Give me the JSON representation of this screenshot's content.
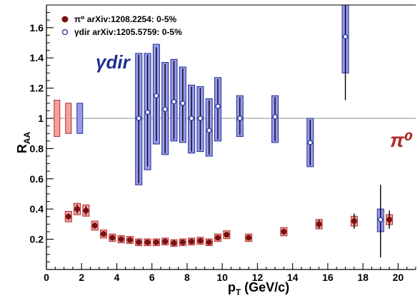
{
  "chart_data": {
    "type": "scatter",
    "xlabel": "p",
    "xlabel_sub": "T",
    "xlabel_unit": " (GeV/c)",
    "ylabel": "R",
    "ylabel_sub": "AA",
    "xlim": [
      0,
      21
    ],
    "ylim": [
      0,
      1.75
    ],
    "x_ticks": [
      0,
      2,
      4,
      6,
      8,
      10,
      12,
      14,
      16,
      18,
      20
    ],
    "x_tick_labels": [
      "0",
      "2",
      "4",
      "6",
      "8",
      "10",
      "12",
      "14",
      "16",
      "18",
      "20"
    ],
    "y_ticks": [
      0.2,
      0.4,
      0.6,
      0.8,
      1.0,
      1.2,
      1.4,
      1.6
    ],
    "y_tick_labels": [
      "0.2",
      "0.4",
      "0.6",
      "0.8",
      "1",
      "1.2",
      "1.4",
      "1.6"
    ],
    "reference_line": 1.0,
    "grid": false,
    "legend_position": "top-left",
    "annotations": {
      "gamma_label": "γdir",
      "pi_label": "π⁰"
    },
    "normalization_boxes": [
      {
        "y": 1.0,
        "low": 0.88,
        "high": 1.12,
        "color": "#f4a0a0"
      },
      {
        "y": 1.0,
        "low": 0.9,
        "high": 1.1,
        "color": "#f4a0a0"
      },
      {
        "y": 1.0,
        "low": 0.9,
        "high": 1.1,
        "color": "#9999ee"
      }
    ],
    "series": [
      {
        "name": "π⁰ arXiv:1208.2254: 0-5%",
        "marker": "filled-circle",
        "color": "#7a1010",
        "box_color": "#f4a0a0",
        "points": [
          {
            "x": 1.25,
            "y": 0.35,
            "lo": 0.33,
            "hi": 0.37
          },
          {
            "x": 1.75,
            "y": 0.4,
            "lo": 0.37,
            "hi": 0.43
          },
          {
            "x": 2.25,
            "y": 0.39,
            "lo": 0.36,
            "hi": 0.42
          },
          {
            "x": 2.75,
            "y": 0.29,
            "lo": 0.27,
            "hi": 0.31
          },
          {
            "x": 3.25,
            "y": 0.235,
            "lo": 0.225,
            "hi": 0.245
          },
          {
            "x": 3.75,
            "y": 0.21,
            "lo": 0.2,
            "hi": 0.22
          },
          {
            "x": 4.25,
            "y": 0.2,
            "lo": 0.19,
            "hi": 0.21
          },
          {
            "x": 4.75,
            "y": 0.195,
            "lo": 0.185,
            "hi": 0.205
          },
          {
            "x": 5.25,
            "y": 0.18,
            "lo": 0.17,
            "hi": 0.19
          },
          {
            "x": 5.75,
            "y": 0.18,
            "lo": 0.17,
            "hi": 0.19
          },
          {
            "x": 6.25,
            "y": 0.18,
            "lo": 0.17,
            "hi": 0.19
          },
          {
            "x": 6.75,
            "y": 0.185,
            "lo": 0.175,
            "hi": 0.195
          },
          {
            "x": 7.25,
            "y": 0.175,
            "lo": 0.165,
            "hi": 0.185
          },
          {
            "x": 7.75,
            "y": 0.18,
            "lo": 0.17,
            "hi": 0.19
          },
          {
            "x": 8.25,
            "y": 0.185,
            "lo": 0.175,
            "hi": 0.195
          },
          {
            "x": 8.75,
            "y": 0.19,
            "lo": 0.18,
            "hi": 0.2
          },
          {
            "x": 9.25,
            "y": 0.18,
            "lo": 0.17,
            "hi": 0.19
          },
          {
            "x": 9.75,
            "y": 0.21,
            "lo": 0.195,
            "hi": 0.225
          },
          {
            "x": 10.25,
            "y": 0.23,
            "lo": 0.215,
            "hi": 0.245
          },
          {
            "x": 11.5,
            "y": 0.21,
            "lo": 0.195,
            "hi": 0.225
          },
          {
            "x": 13.5,
            "y": 0.25,
            "lo": 0.23,
            "hi": 0.27
          },
          {
            "x": 15.5,
            "y": 0.3,
            "lo": 0.27,
            "hi": 0.33
          },
          {
            "x": 17.5,
            "y": 0.32,
            "lo": 0.27,
            "hi": 0.37
          },
          {
            "x": 19.5,
            "y": 0.33,
            "lo": 0.27,
            "hi": 0.39
          }
        ]
      },
      {
        "name": "γdir arXiv:1205.5759: 0-5%",
        "marker": "open-circle",
        "color": "#1f2f8f",
        "box_color": "#9999ee",
        "points": [
          {
            "x": 5.25,
            "y": 1.0,
            "lo": 0.57,
            "hi": 1.42,
            "box_lo": 0.56,
            "box_hi": 1.43
          },
          {
            "x": 5.75,
            "y": 1.04,
            "lo": 0.68,
            "hi": 1.42,
            "box_lo": 0.66,
            "box_hi": 1.43
          },
          {
            "x": 6.25,
            "y": 1.15,
            "lo": 0.85,
            "hi": 1.47,
            "box_lo": 0.83,
            "box_hi": 1.49
          },
          {
            "x": 6.75,
            "y": 1.06,
            "lo": 0.77,
            "hi": 1.36,
            "box_lo": 0.76,
            "box_hi": 1.37
          },
          {
            "x": 7.25,
            "y": 1.11,
            "lo": 0.86,
            "hi": 1.38,
            "box_lo": 0.85,
            "box_hi": 1.39
          },
          {
            "x": 7.75,
            "y": 1.1,
            "lo": 0.85,
            "hi": 1.33,
            "box_lo": 0.84,
            "box_hi": 1.34
          },
          {
            "x": 8.25,
            "y": 1.0,
            "lo": 0.78,
            "hi": 1.21,
            "box_lo": 0.77,
            "box_hi": 1.22
          },
          {
            "x": 8.75,
            "y": 1.0,
            "lo": 0.79,
            "hi": 1.2,
            "box_lo": 0.78,
            "box_hi": 1.21
          },
          {
            "x": 9.25,
            "y": 0.92,
            "lo": 0.76,
            "hi": 1.12,
            "box_lo": 0.75,
            "box_hi": 1.13
          },
          {
            "x": 9.75,
            "y": 1.08,
            "lo": 0.86,
            "hi": 1.26,
            "box_lo": 0.85,
            "box_hi": 1.27
          },
          {
            "x": 11.0,
            "y": 1.0,
            "lo": 0.89,
            "hi": 1.14,
            "box_lo": 0.88,
            "box_hi": 1.15
          },
          {
            "x": 13.0,
            "y": 1.01,
            "lo": 0.85,
            "hi": 1.14,
            "box_lo": 0.84,
            "box_hi": 1.15
          },
          {
            "x": 15.0,
            "y": 0.84,
            "lo": 0.69,
            "hi": 0.99,
            "box_lo": 0.68,
            "box_hi": 1.0
          },
          {
            "x": 17.0,
            "y": 1.54,
            "lo": 1.12,
            "hi": 1.75,
            "box_lo": 1.3,
            "box_hi": 1.75
          },
          {
            "x": 19.0,
            "y": 0.33,
            "lo": 0.08,
            "hi": 0.56,
            "box_lo": 0.25,
            "box_hi": 0.4
          }
        ]
      }
    ]
  }
}
